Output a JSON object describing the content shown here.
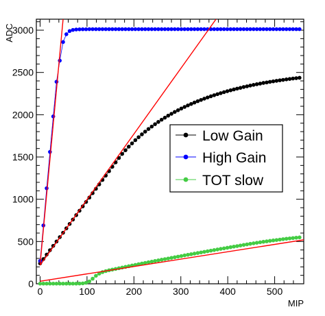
{
  "chart_data": {
    "type": "scatter",
    "title": "",
    "xlabel": "MIP",
    "ylabel": "ADC",
    "xlim": [
      -8,
      562
    ],
    "ylim": [
      0,
      3130
    ],
    "xticks": [
      0,
      100,
      200,
      300,
      400,
      500
    ],
    "yticks": [
      0,
      500,
      1000,
      1500,
      2000,
      2500,
      3000
    ],
    "grid": false,
    "legend_position": "center-right",
    "series": [
      {
        "name": "Low Gain",
        "color": "#000000",
        "x": [
          0,
          7,
          14,
          21,
          28,
          35,
          42,
          49,
          56,
          63,
          70,
          77,
          84,
          91,
          98,
          105,
          112,
          119,
          126,
          133,
          140,
          147,
          154,
          161,
          168,
          175,
          182,
          189,
          196,
          203,
          210,
          217,
          224,
          231,
          238,
          245,
          252,
          259,
          266,
          273,
          280,
          287,
          294,
          301,
          308,
          315,
          322,
          329,
          336,
          343,
          350,
          357,
          364,
          371,
          378,
          385,
          392,
          399,
          406,
          413,
          420,
          427,
          434,
          441,
          448,
          455,
          462,
          469,
          476,
          483,
          490,
          497,
          504,
          511,
          518,
          525,
          532,
          539,
          546,
          553
        ],
        "y": [
          241,
          293,
          345,
          397,
          449,
          500,
          552,
          604,
          656,
          708,
          760,
          812,
          864,
          916,
          968,
          1020,
          1072,
          1124,
          1176,
          1228,
          1280,
          1332,
          1384,
          1436,
          1488,
          1536,
          1580,
          1622,
          1661,
          1699,
          1734,
          1768,
          1800,
          1831,
          1860,
          1888,
          1915,
          1941,
          1965,
          1989,
          2011,
          2033,
          2053,
          2073,
          2092,
          2110,
          2127,
          2144,
          2160,
          2175,
          2190,
          2204,
          2218,
          2231,
          2243,
          2255,
          2267,
          2278,
          2289,
          2299,
          2309,
          2318,
          2328,
          2336,
          2345,
          2353,
          2361,
          2368,
          2376,
          2382,
          2389,
          2395,
          2401,
          2407,
          2412,
          2418,
          2423,
          2428,
          2432,
          2437
        ]
      },
      {
        "name": "High Gain",
        "color": "#0000ff",
        "x": [
          0,
          7,
          14,
          21,
          28,
          35,
          42,
          49,
          56,
          63,
          70,
          77,
          84,
          91,
          98,
          105,
          112,
          119,
          126,
          133,
          140,
          147,
          154,
          161,
          168,
          175,
          182,
          189,
          196,
          203,
          210,
          217,
          224,
          231,
          238,
          245,
          252,
          259,
          266,
          273,
          280,
          287,
          294,
          301,
          308,
          315,
          322,
          329,
          336,
          343,
          350,
          357,
          364,
          371,
          378,
          385,
          392,
          399,
          406,
          413,
          420,
          427,
          434,
          441,
          448,
          455,
          462,
          469,
          476,
          483,
          490,
          497,
          504,
          511,
          518,
          525,
          532,
          539,
          546,
          553
        ],
        "y": [
          270,
          690,
          1130,
          1560,
          1980,
          2390,
          2640,
          2860,
          2952,
          2990,
          3003,
          3008,
          3010,
          3011,
          3011,
          3012,
          3012,
          3012,
          3012,
          3012,
          3012,
          3012,
          3012,
          3012,
          3012,
          3012,
          3012,
          3012,
          3012,
          3012,
          3012,
          3012,
          3012,
          3012,
          3012,
          3012,
          3012,
          3012,
          3012,
          3012,
          3012,
          3012,
          3012,
          3012,
          3012,
          3012,
          3012,
          3012,
          3012,
          3012,
          3012,
          3012,
          3012,
          3012,
          3012,
          3012,
          3012,
          3012,
          3012,
          3012,
          3012,
          3012,
          3012,
          3012,
          3012,
          3012,
          3012,
          3012,
          3012,
          3012,
          3012,
          3012,
          3012,
          3012,
          3012,
          3012,
          3012,
          3012,
          3012,
          3012
        ]
      },
      {
        "name": "TOT slow",
        "color": "#44cc44",
        "x": [
          0,
          7,
          14,
          21,
          28,
          35,
          42,
          49,
          56,
          63,
          70,
          77,
          84,
          91,
          98,
          105,
          112,
          119,
          126,
          133,
          140,
          147,
          154,
          161,
          168,
          175,
          182,
          189,
          196,
          203,
          210,
          217,
          224,
          231,
          238,
          245,
          252,
          259,
          266,
          273,
          280,
          287,
          294,
          301,
          308,
          315,
          322,
          329,
          336,
          343,
          350,
          357,
          364,
          371,
          378,
          385,
          392,
          399,
          406,
          413,
          420,
          427,
          434,
          441,
          448,
          455,
          462,
          469,
          476,
          483,
          490,
          497,
          504,
          511,
          518,
          525,
          532,
          539,
          546,
          553
        ],
        "y": [
          2,
          2,
          2,
          2,
          2,
          2,
          2,
          2,
          2,
          2,
          2,
          2,
          3,
          5,
          12,
          28,
          60,
          95,
          120,
          138,
          150,
          160,
          168,
          176,
          184,
          192,
          200,
          208,
          216,
          224,
          232,
          240,
          247,
          255,
          262,
          270,
          277,
          285,
          292,
          299,
          307,
          314,
          321,
          328,
          336,
          343,
          350,
          357,
          364,
          371,
          378,
          385,
          392,
          399,
          406,
          413,
          419,
          426,
          433,
          440,
          446,
          453,
          460,
          466,
          473,
          479,
          485,
          491,
          497,
          502,
          508,
          513,
          518,
          523,
          528,
          533,
          537,
          541,
          545,
          549
        ]
      }
    ],
    "fits": [
      {
        "color": "#ff0000",
        "x": [
          0,
          49
        ],
        "y": [
          230,
          3130
        ]
      },
      {
        "color": "#ff0000",
        "x": [
          0,
          375
        ],
        "y": [
          220,
          3130
        ]
      },
      {
        "color": "#ff0000",
        "x": [
          0,
          562
        ],
        "y": [
          30,
          520
        ]
      }
    ]
  }
}
